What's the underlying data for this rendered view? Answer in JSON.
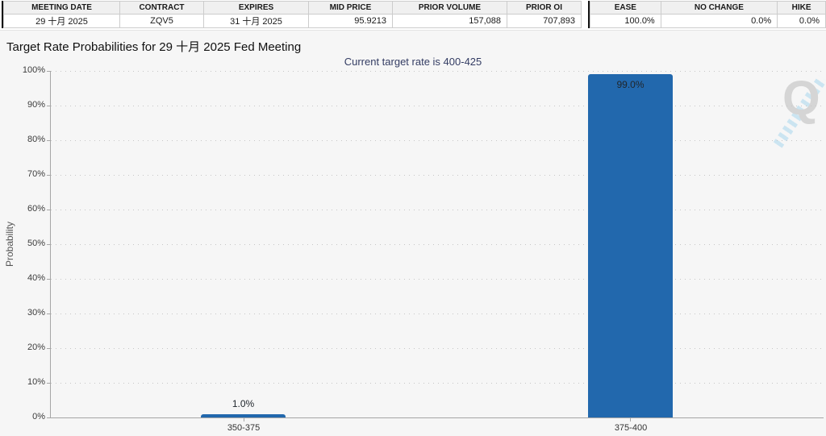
{
  "top_tables": {
    "left": {
      "headers": [
        "MEETING DATE",
        "CONTRACT",
        "EXPIRES",
        "MID PRICE",
        "PRIOR VOLUME",
        "PRIOR OI"
      ],
      "values": [
        "29 十月 2025",
        "ZQV5",
        "31 十月 2025",
        "95.9213",
        "157,088",
        "707,893"
      ]
    },
    "right": {
      "headers": [
        "EASE",
        "NO CHANGE",
        "HIKE"
      ],
      "values": [
        "100.0%",
        "0.0%",
        "0.0%"
      ]
    }
  },
  "header": {
    "title": "Target Rate Probabilities for 29 十月 2025 Fed Meeting",
    "subtitle": "Current target rate is 400-425",
    "menu_icon": "hamburger-icon"
  },
  "watermark": {
    "letter": "Q"
  },
  "colors": {
    "bar": "#2268ad",
    "subtitle_text": "#333c63",
    "panel_background": "#f6f6f6",
    "gridline": "#c6c6c6"
  },
  "chart_data": {
    "type": "bar",
    "categories": [
      "350-375",
      "375-400"
    ],
    "values": [
      1.0,
      99.0
    ],
    "value_labels": [
      "1.0%",
      "99.0%"
    ],
    "title": "Target Rate Probabilities for 29 十月 2025 Fed Meeting",
    "subtitle": "Current target rate is 400-425",
    "xlabel": "",
    "ylabel": "Probability",
    "ylim": [
      0,
      100
    ],
    "ytick_labels": [
      "0%",
      "10%",
      "20%",
      "30%",
      "40%",
      "50%",
      "60%",
      "70%",
      "80%",
      "90%",
      "100%"
    ],
    "grid": "horizontal-dotted",
    "legend": "none",
    "bar_color": "#2268ad"
  }
}
